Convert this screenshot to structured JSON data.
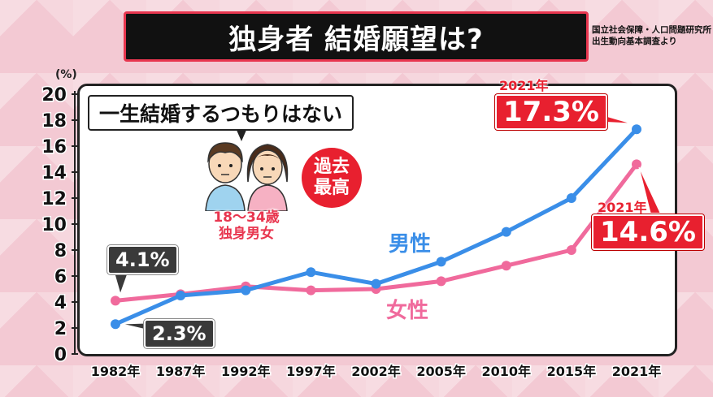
{
  "title": "独身者 結婚願望は?",
  "source_lines": [
    "国立社会保障・人口問題研究所",
    "出生動向基本調査より"
  ],
  "unit_label": "(%)",
  "callout": "一生結婚するつもりはない",
  "record_badge": [
    "過去",
    "最高"
  ],
  "age_group": [
    "18〜34歳",
    "独身男女"
  ],
  "annotations": {
    "male_1982": "2.3%",
    "female_1982": "4.1%",
    "male_2021_year": "2021年",
    "male_2021_value": "17.3%",
    "female_2021_year": "2021年",
    "female_2021_value": "14.6%"
  },
  "colors": {
    "male": "#3a8ee8",
    "female": "#f06a9c",
    "accent": "#e8202f"
  },
  "chart_data": {
    "type": "line",
    "categories": [
      "1982年",
      "1987年",
      "1992年",
      "1997年",
      "2002年",
      "2005年",
      "2010年",
      "2015年",
      "2021年"
    ],
    "series": [
      {
        "name": "男性",
        "values": [
          2.3,
          4.5,
          4.9,
          6.3,
          5.4,
          7.1,
          9.4,
          12.0,
          17.3
        ]
      },
      {
        "name": "女性",
        "values": [
          4.1,
          4.6,
          5.2,
          4.9,
          5.0,
          5.6,
          6.8,
          8.0,
          14.6
        ]
      }
    ],
    "yticks": [
      0,
      2,
      4,
      6,
      8,
      10,
      12,
      14,
      16,
      18,
      20
    ],
    "ylim": [
      0,
      20
    ]
  }
}
